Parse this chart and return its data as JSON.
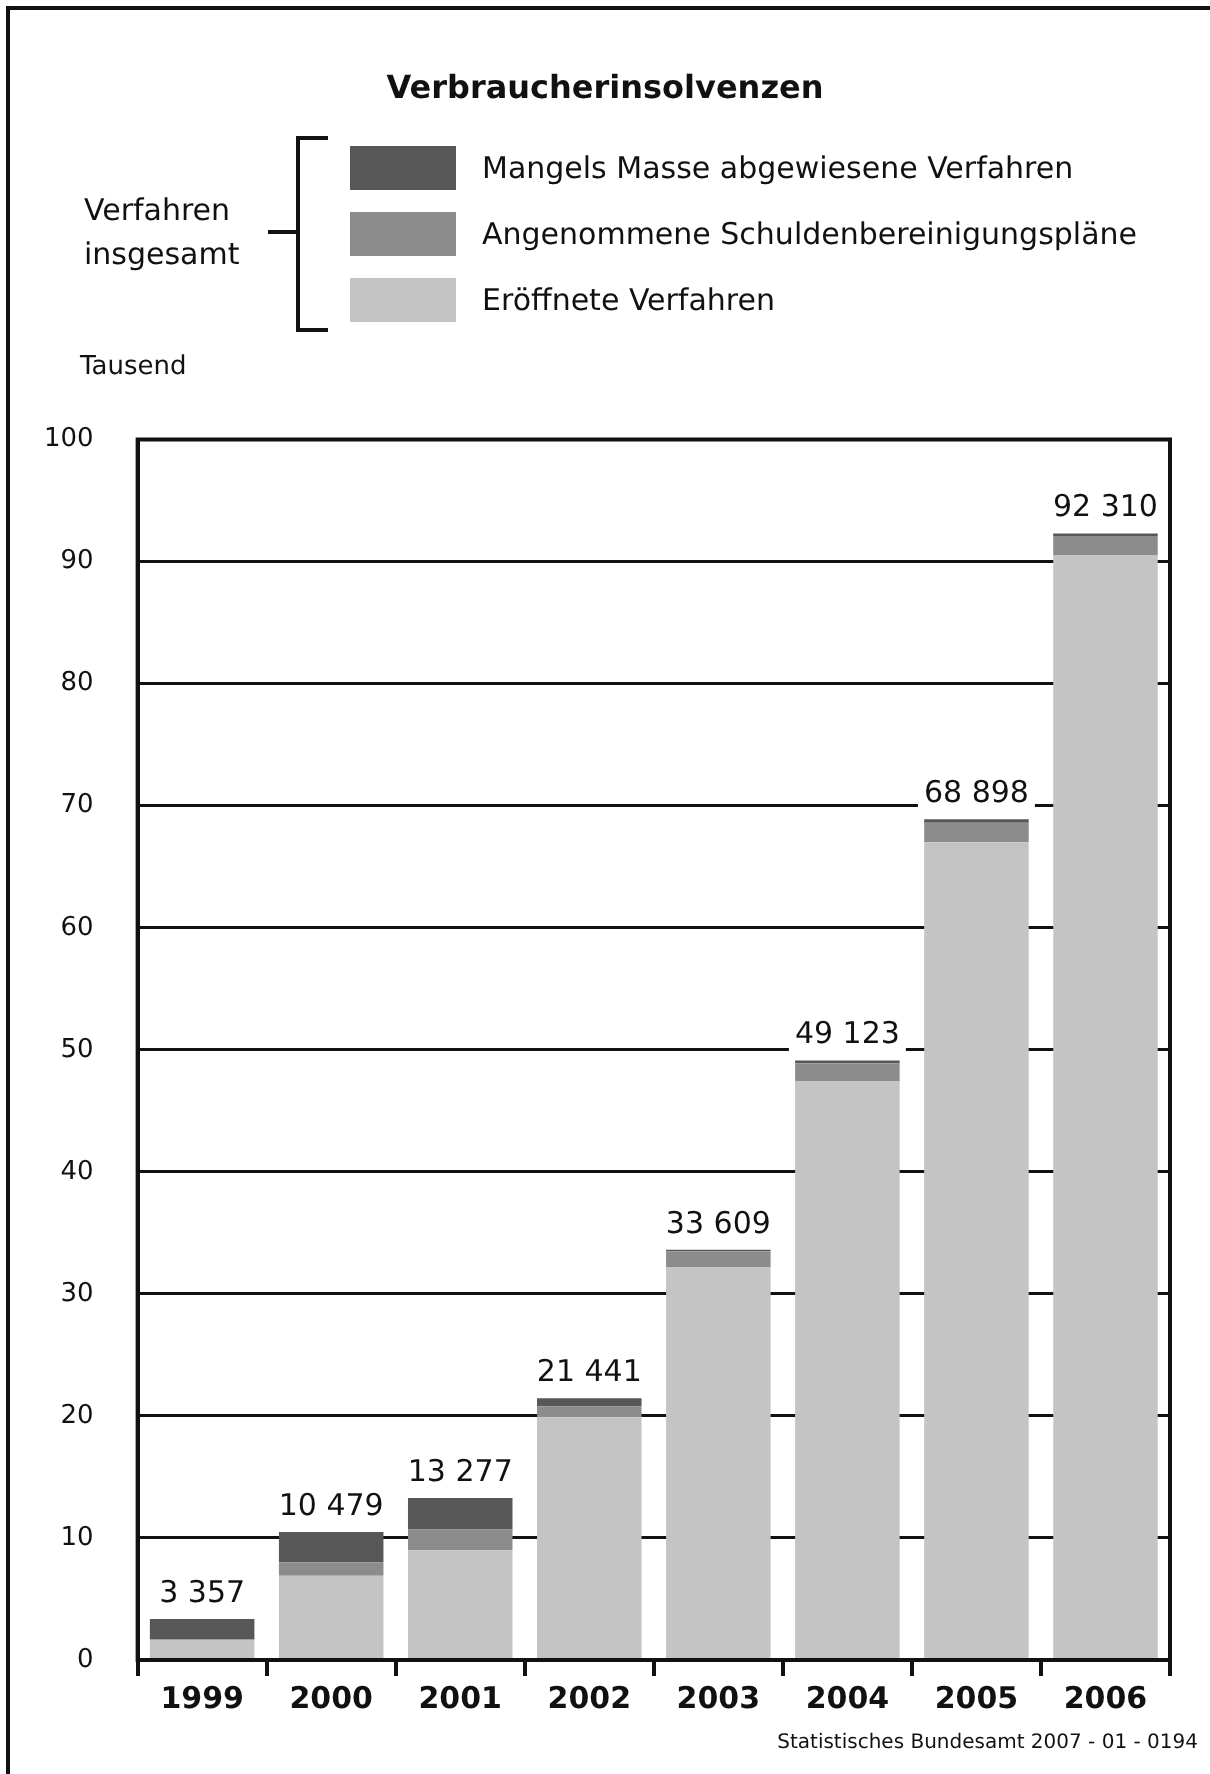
{
  "chart_data": {
    "type": "bar",
    "title": "Verbraucherinsolvenzen",
    "ylabel": "Tausend",
    "legend_title": "Verfahren insgesamt",
    "legend": "top",
    "stacked": true,
    "grid": "y",
    "categories": [
      "1999",
      "2000",
      "2001",
      "2002",
      "2003",
      "2004",
      "2005",
      "2006"
    ],
    "series": [
      {
        "name": "Eröffnete Verfahren",
        "color": "#c4c4c4",
        "values": [
          1.6,
          6.9,
          9.0,
          19.9,
          32.2,
          47.4,
          67.0,
          90.5
        ]
      },
      {
        "name": "Angenommene Schuldenbereinigungspläne",
        "color": "#8c8c8c",
        "values": [
          0.1,
          1.1,
          1.7,
          0.9,
          1.3,
          1.5,
          1.6,
          1.6
        ]
      },
      {
        "name": "Mangels Masse abgewiesene Verfahren",
        "color": "#575757",
        "values": [
          1.657,
          2.479,
          2.577,
          0.641,
          0.109,
          0.223,
          0.298,
          0.21
        ]
      }
    ],
    "totals": [
      "3 357",
      "10 479",
      "13 277",
      "21 441",
      "33 609",
      "49 123",
      "68 898",
      "92 310"
    ],
    "ylim": [
      0,
      100
    ],
    "yticks": [
      0,
      10,
      20,
      30,
      40,
      50,
      60,
      70,
      80,
      90,
      100
    ],
    "annotations": [
      "Statistisches Bundesamt 2007 - 01 - 0194"
    ]
  }
}
